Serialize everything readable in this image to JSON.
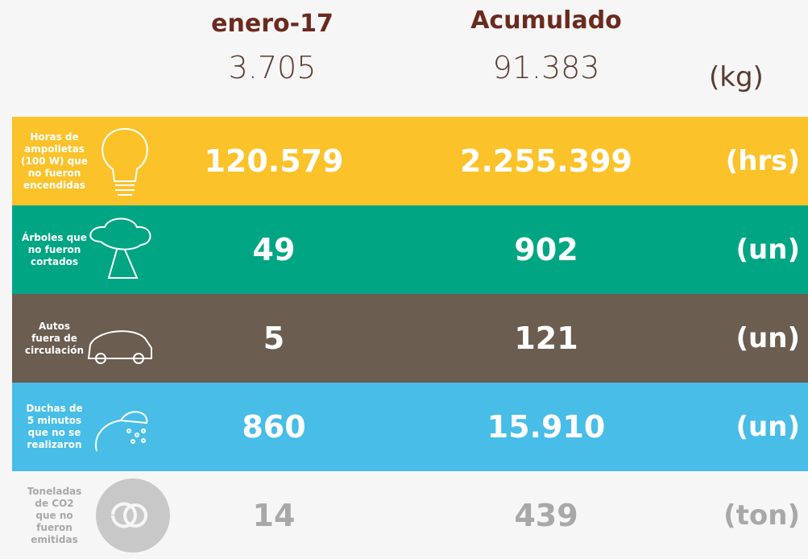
{
  "header": {
    "period": {
      "title": "enero-17",
      "value": "3.705"
    },
    "cumulative": {
      "title": "Acumulado",
      "value": "91.383"
    },
    "unit": "(kg)"
  },
  "rows": [
    {
      "label": [
        "Horas de",
        "ampolletas",
        "(100 W) que",
        "no fueron",
        "encendidas"
      ],
      "period": "120.579",
      "cumulative": "2.255.399",
      "unit": "(hrs)",
      "color": "#fbc22a"
    },
    {
      "label": [
        "Árboles que",
        "no fueron",
        "cortados"
      ],
      "period": "49",
      "cumulative": "902",
      "unit": "(un)",
      "color": "#00a683"
    },
    {
      "label": [
        "Autos",
        "fuera de",
        "circulación"
      ],
      "period": "5",
      "cumulative": "121",
      "unit": "(un)",
      "color": "#6b5d50"
    },
    {
      "label": [
        "Duchas de",
        "5 minutos",
        "que no se",
        "realizaron"
      ],
      "period": "860",
      "cumulative": "15.910",
      "unit": "(un)",
      "color": "#47bde8"
    },
    {
      "label": [
        "Toneladas",
        "de CO2",
        "que no",
        "fueron",
        "emitidas"
      ],
      "period": "14",
      "cumulative": "439",
      "unit": "(ton)",
      "color": "#f6f6f6",
      "text_color": "#a8a8a8"
    }
  ]
}
